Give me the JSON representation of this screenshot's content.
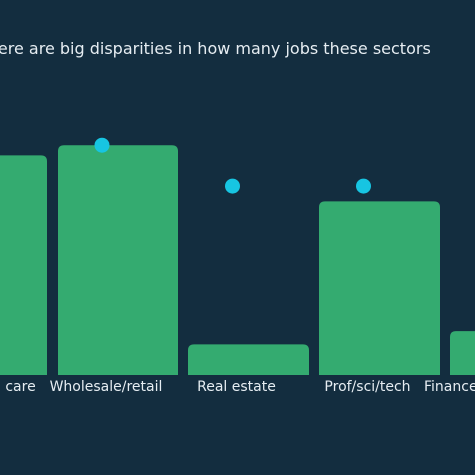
{
  "chart_data": {
    "type": "bar",
    "title": "There are big disparities in how many jobs these sectors",
    "categories": [
      "Health and social care",
      "Wholesale/retail",
      "Real estate",
      "Prof/sci/tech",
      "Finance"
    ],
    "visible_tick_labels": [
      "l care",
      "Wholesale/retail",
      "Real estate",
      "Prof/sci/tech",
      "Finance"
    ],
    "series": [
      {
        "type": "bar",
        "values": [
          2.15,
          2.25,
          0.3,
          1.7,
          0.43
        ]
      },
      {
        "type": "dot",
        "values": [
          null,
          2.25,
          1.85,
          1.85,
          null
        ]
      }
    ],
    "ylim": [
      0,
      2.35
    ],
    "grid": false,
    "colors": {
      "background": "#132d3f",
      "bar": "#34ab70",
      "dot": "#17c5e2",
      "text": "#e6edf2"
    }
  }
}
